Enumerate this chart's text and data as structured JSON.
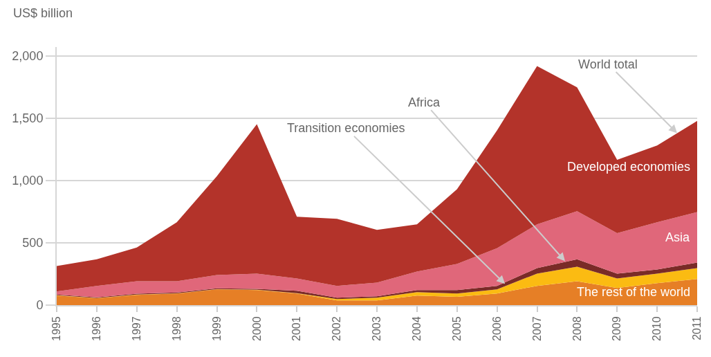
{
  "chart_data": {
    "type": "area",
    "stacked": true,
    "ylabel": "US$ billion",
    "x": [
      1995,
      1996,
      1997,
      1998,
      1999,
      2000,
      2001,
      2002,
      2003,
      2004,
      2005,
      2006,
      2007,
      2008,
      2009,
      2010,
      2011
    ],
    "series": [
      {
        "name": "The rest of the world",
        "color": "#e67f26",
        "values": [
          77,
          55,
          82,
          93,
          126,
          121,
          93,
          38,
          38,
          77,
          66,
          93,
          154,
          192,
          137,
          176,
          209
        ]
      },
      {
        "color": "#fbbb12",
        "values": [
          2,
          2,
          2,
          2,
          2,
          2,
          3,
          11,
          22,
          27,
          27,
          33,
          99,
          116,
          77,
          77,
          88
        ]
      },
      {
        "color": "#7a2b27",
        "values": [
          6,
          6,
          7,
          6,
          7,
          8,
          19,
          11,
          11,
          17,
          28,
          28,
          44,
          60,
          39,
          33,
          44
        ]
      },
      {
        "name": "Asia",
        "color": "#e0677a",
        "values": [
          25,
          91,
          101,
          91,
          107,
          122,
          99,
          94,
          110,
          148,
          209,
          302,
          351,
          385,
          324,
          379,
          406
        ]
      },
      {
        "name": "Developed economies",
        "color": "#b3332a",
        "values": [
          203,
          214,
          270,
          473,
          791,
          1198,
          495,
          538,
          423,
          379,
          599,
          945,
          1270,
          994,
          588,
          615,
          731
        ]
      }
    ],
    "annotations": [
      {
        "text": "World total",
        "x": 2010.5,
        "y": 1379
      },
      {
        "text": "Transition economies",
        "x": 2006.2,
        "y": 170
      },
      {
        "text": "Africa",
        "x": 2007.7,
        "y": 352
      }
    ],
    "xlim": [
      1995,
      2011
    ],
    "xticks": [
      1995,
      1996,
      1997,
      1998,
      1999,
      2000,
      2001,
      2002,
      2003,
      2004,
      2005,
      2006,
      2007,
      2008,
      2009,
      2010,
      2011
    ],
    "ylim": [
      0,
      2070
    ],
    "yticks": [
      0,
      500,
      {
        "value": 1000,
        "label": "1,000"
      },
      {
        "value": 1500,
        "label": "1,500"
      },
      {
        "value": 2000,
        "label": "2,000"
      }
    ],
    "grid": "y",
    "legend": false
  }
}
